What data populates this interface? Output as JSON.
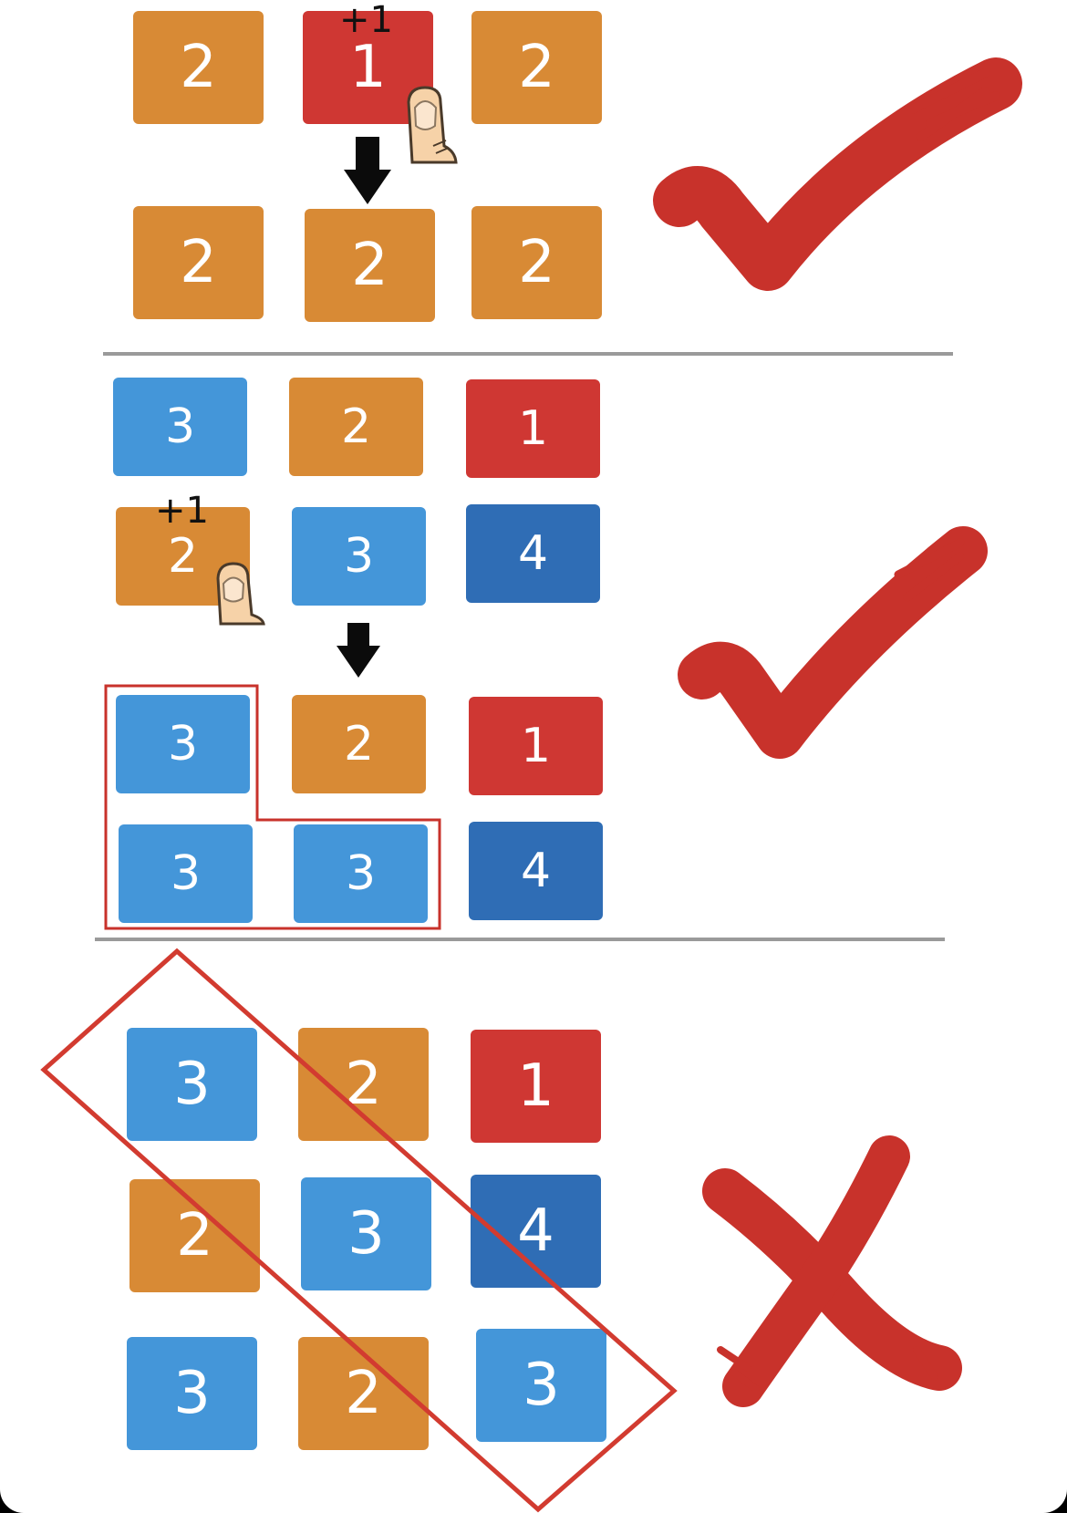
{
  "colors": {
    "orange": "#d88a35",
    "red": "#cf3733",
    "sky": "#4496d9",
    "navy": "#2f6db5",
    "mark": "#c8322b"
  },
  "example1": {
    "before": [
      "2",
      "1",
      "2"
    ],
    "after": [
      "2",
      "2",
      "2"
    ],
    "tap_label": "+1",
    "verdict": "check-mark-icon"
  },
  "example2": {
    "before": [
      [
        "3",
        "2",
        "1"
      ],
      [
        "2",
        "3",
        "4"
      ]
    ],
    "after": [
      [
        "3",
        "2",
        "1"
      ],
      [
        "3",
        "3",
        "4"
      ]
    ],
    "tap_label": "+1",
    "verdict": "check-mark-icon"
  },
  "example3": {
    "grid": [
      [
        "3",
        "2",
        "1"
      ],
      [
        "2",
        "3",
        "4"
      ],
      [
        "3",
        "2",
        "3"
      ]
    ],
    "verdict": "cross-mark-icon"
  },
  "icons": [
    "finger-tap-icon",
    "down-arrow-icon",
    "check-mark-icon",
    "cross-mark-icon",
    "group-outline",
    "diagonal-outline"
  ]
}
